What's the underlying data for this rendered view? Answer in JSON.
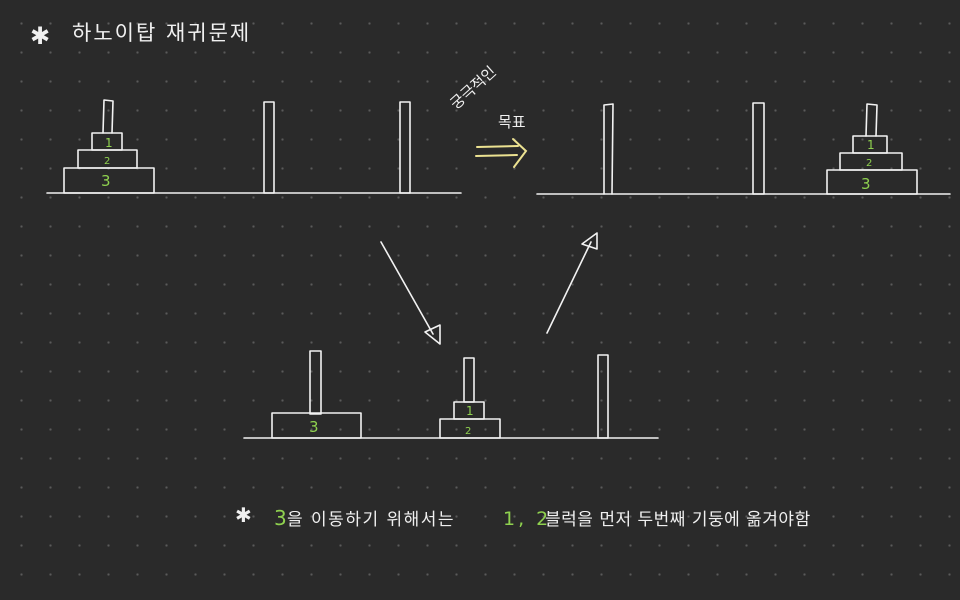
{
  "title": {
    "bullet": "✱",
    "text": "하노이탑 재귀문제"
  },
  "goal": {
    "label_line1": "궁극적인",
    "label_line2": "목표"
  },
  "disks": {
    "d1": "1",
    "d2": "2",
    "d3": "3"
  },
  "note": {
    "bullet": "✱",
    "part_num3": "3",
    "part_text1": "을 이동하기 위해서는",
    "part_nums12": "1, 2",
    "part_text2": "블럭을 먼저 두번째 기둥에 옮겨야함"
  },
  "colors": {
    "background": "#2a2a2a",
    "ink": "#f2f2f2",
    "number_green": "#8fd14f",
    "arrow_yellow": "#ece291"
  },
  "icons": [
    "asterisk-icon",
    "double-arrow-right-icon",
    "arrow-down-right-icon",
    "arrow-up-right-icon"
  ]
}
